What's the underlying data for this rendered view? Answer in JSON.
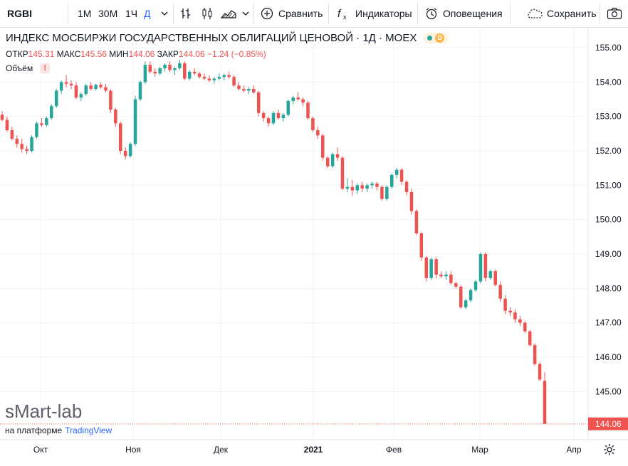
{
  "toolbar": {
    "symbol": "RGBI",
    "intervals": [
      "1М",
      "30М",
      "1Ч",
      "Д"
    ],
    "active_interval": "Д",
    "compare_label": "Сравнить",
    "indicators_label": "Индикаторы",
    "alerts_label": "Оповещения",
    "save_label": "Сохранить"
  },
  "legend": {
    "title": "ИНДЕКС МОСБИРЖИ ГОСУДАРСТВЕННЫХ ОБЛИГАЦИЙ ЦЕНОВОЙ · 1Д · MOEX",
    "market_badge": "D",
    "open_label": "ОТКР",
    "open": "145.31",
    "high_label": "МАКС",
    "high": "145.56",
    "low_label": "МИН",
    "low": "144.06",
    "close_label": "ЗАКР",
    "close": "144.06",
    "change": "−1.24 (−0.85%)",
    "volume_label": "Объём",
    "volume_warning": "!"
  },
  "price_axis": {
    "ticks": [
      "155.00",
      "154.00",
      "153.00",
      "152.00",
      "151.00",
      "150.00",
      "149.00",
      "148.00",
      "147.00",
      "146.00",
      "145.00"
    ],
    "last_price": "144.06"
  },
  "time_axis": {
    "labels": [
      "Окт",
      "Ноя",
      "Дек",
      "2021",
      "Фев",
      "Мар",
      "Апр"
    ]
  },
  "watermark": {
    "logo": "sMart-lab",
    "platform_text": "на платформе",
    "platform_link": "TradingView"
  },
  "colors": {
    "up": "#26a69a",
    "down": "#ef5350",
    "accent": "#2962ff"
  },
  "chart_data": {
    "type": "candlestick",
    "y_range": [
      143.6,
      155.6
    ],
    "ohlc": [
      [
        153.05,
        153.15,
        152.85,
        152.9
      ],
      [
        152.9,
        153.0,
        152.55,
        152.6
      ],
      [
        152.6,
        152.7,
        152.3,
        152.35
      ],
      [
        152.35,
        152.45,
        152.1,
        152.2
      ],
      [
        152.2,
        152.35,
        151.95,
        152.05
      ],
      [
        152.05,
        152.15,
        151.9,
        152.0
      ],
      [
        152.0,
        152.45,
        151.95,
        152.4
      ],
      [
        152.4,
        152.85,
        152.35,
        152.8
      ],
      [
        152.8,
        152.95,
        152.7,
        152.75
      ],
      [
        152.75,
        153.0,
        152.7,
        152.95
      ],
      [
        152.95,
        153.35,
        152.9,
        153.3
      ],
      [
        153.3,
        153.8,
        153.25,
        153.75
      ],
      [
        153.75,
        154.05,
        153.65,
        154.0
      ],
      [
        154.0,
        154.2,
        153.85,
        153.95
      ],
      [
        153.95,
        154.05,
        153.8,
        153.9
      ],
      [
        153.9,
        154.0,
        153.5,
        153.55
      ],
      [
        153.55,
        153.7,
        153.45,
        153.65
      ],
      [
        153.65,
        153.95,
        153.6,
        153.9
      ],
      [
        153.9,
        154.0,
        153.75,
        153.8
      ],
      [
        153.8,
        153.95,
        153.75,
        153.92
      ],
      [
        153.92,
        154.0,
        153.8,
        153.85
      ],
      [
        153.85,
        153.95,
        153.7,
        153.75
      ],
      [
        153.75,
        153.8,
        153.1,
        153.2
      ],
      [
        153.2,
        153.25,
        152.7,
        152.8
      ],
      [
        152.8,
        152.85,
        151.9,
        152.0
      ],
      [
        152.0,
        152.1,
        151.75,
        151.85
      ],
      [
        151.85,
        152.25,
        151.8,
        152.2
      ],
      [
        152.2,
        153.6,
        152.15,
        153.5
      ],
      [
        153.5,
        154.05,
        153.45,
        154.0
      ],
      [
        154.0,
        154.6,
        153.95,
        154.5
      ],
      [
        154.5,
        154.6,
        154.25,
        154.3
      ],
      [
        154.3,
        154.4,
        154.15,
        154.25
      ],
      [
        154.25,
        154.45,
        154.2,
        154.4
      ],
      [
        154.4,
        154.55,
        154.3,
        154.5
      ],
      [
        154.5,
        154.6,
        154.3,
        154.35
      ],
      [
        154.35,
        154.45,
        154.2,
        154.4
      ],
      [
        154.4,
        154.65,
        154.35,
        154.55
      ],
      [
        154.55,
        154.6,
        154.05,
        154.1
      ],
      [
        154.1,
        154.35,
        154.05,
        154.3
      ],
      [
        154.3,
        154.4,
        154.2,
        154.25
      ],
      [
        154.25,
        154.3,
        154.1,
        154.15
      ],
      [
        154.15,
        154.25,
        154.05,
        154.1
      ],
      [
        154.1,
        154.2,
        154.0,
        154.05
      ],
      [
        154.05,
        154.15,
        153.95,
        154.1
      ],
      [
        154.1,
        154.25,
        154.05,
        154.15
      ],
      [
        154.15,
        154.25,
        154.05,
        154.2
      ],
      [
        154.2,
        154.3,
        154.1,
        154.15
      ],
      [
        154.15,
        154.2,
        153.85,
        153.9
      ],
      [
        153.9,
        154.0,
        153.75,
        153.8
      ],
      [
        153.8,
        153.9,
        153.7,
        153.75
      ],
      [
        153.75,
        153.85,
        153.65,
        153.8
      ],
      [
        153.8,
        153.9,
        153.65,
        153.7
      ],
      [
        153.7,
        153.75,
        153.0,
        153.1
      ],
      [
        153.1,
        153.15,
        152.85,
        152.95
      ],
      [
        152.95,
        153.0,
        152.7,
        152.8
      ],
      [
        152.8,
        153.15,
        152.75,
        153.1
      ],
      [
        153.1,
        153.2,
        152.9,
        152.95
      ],
      [
        152.95,
        153.1,
        152.85,
        153.05
      ],
      [
        153.05,
        153.5,
        153.0,
        153.45
      ],
      [
        153.45,
        153.6,
        153.35,
        153.55
      ],
      [
        153.55,
        153.7,
        153.45,
        153.5
      ],
      [
        153.5,
        153.55,
        153.3,
        153.4
      ],
      [
        153.4,
        153.45,
        152.9,
        152.95
      ],
      [
        152.95,
        153.0,
        152.55,
        152.6
      ],
      [
        152.6,
        152.7,
        152.35,
        152.45
      ],
      [
        152.45,
        152.5,
        151.7,
        151.8
      ],
      [
        151.8,
        151.85,
        151.5,
        151.55
      ],
      [
        151.55,
        151.95,
        151.5,
        151.9
      ],
      [
        151.9,
        152.1,
        151.7,
        151.8
      ],
      [
        151.8,
        151.85,
        150.85,
        150.9
      ],
      [
        150.9,
        151.2,
        150.8,
        150.95
      ],
      [
        150.95,
        151.15,
        150.7,
        150.85
      ],
      [
        150.85,
        151.05,
        150.75,
        151.0
      ],
      [
        151.0,
        151.1,
        150.8,
        150.9
      ],
      [
        150.9,
        151.05,
        150.8,
        151.0
      ],
      [
        151.0,
        151.1,
        150.9,
        151.05
      ],
      [
        151.05,
        151.1,
        150.85,
        150.95
      ],
      [
        150.95,
        151.0,
        150.55,
        150.6
      ],
      [
        150.6,
        151.0,
        150.55,
        150.95
      ],
      [
        150.95,
        151.35,
        150.9,
        151.3
      ],
      [
        151.3,
        151.5,
        151.2,
        151.45
      ],
      [
        151.45,
        151.5,
        151.0,
        151.1
      ],
      [
        151.1,
        151.15,
        150.7,
        150.8
      ],
      [
        150.8,
        150.9,
        150.15,
        150.25
      ],
      [
        150.25,
        150.3,
        149.55,
        149.6
      ],
      [
        149.6,
        149.65,
        148.8,
        148.9
      ],
      [
        148.9,
        148.95,
        148.2,
        148.3
      ],
      [
        148.3,
        148.9,
        148.25,
        148.85
      ],
      [
        148.85,
        148.9,
        148.3,
        148.4
      ],
      [
        148.4,
        148.5,
        148.3,
        148.35
      ],
      [
        148.35,
        148.5,
        148.25,
        148.4
      ],
      [
        148.4,
        148.5,
        148.1,
        148.15
      ],
      [
        148.15,
        148.2,
        148.0,
        148.05
      ],
      [
        148.05,
        148.1,
        147.4,
        147.45
      ],
      [
        147.45,
        147.7,
        147.4,
        147.65
      ],
      [
        147.65,
        148.0,
        147.6,
        147.95
      ],
      [
        147.95,
        148.25,
        147.9,
        148.2
      ],
      [
        148.2,
        149.05,
        148.15,
        149.0
      ],
      [
        149.0,
        149.05,
        148.2,
        148.3
      ],
      [
        148.3,
        148.55,
        148.25,
        148.5
      ],
      [
        148.5,
        148.55,
        148.05,
        148.1
      ],
      [
        148.1,
        148.2,
        147.6,
        147.7
      ],
      [
        147.7,
        147.8,
        147.25,
        147.35
      ],
      [
        147.35,
        147.45,
        147.2,
        147.3
      ],
      [
        147.3,
        147.4,
        147.0,
        147.1
      ],
      [
        147.1,
        147.2,
        146.9,
        147.0
      ],
      [
        147.0,
        147.05,
        146.7,
        146.75
      ],
      [
        146.75,
        146.8,
        146.3,
        146.35
      ],
      [
        146.35,
        146.4,
        145.75,
        145.8
      ],
      [
        145.8,
        145.85,
        145.3,
        145.35
      ],
      [
        145.31,
        145.56,
        144.06,
        144.06
      ]
    ]
  }
}
